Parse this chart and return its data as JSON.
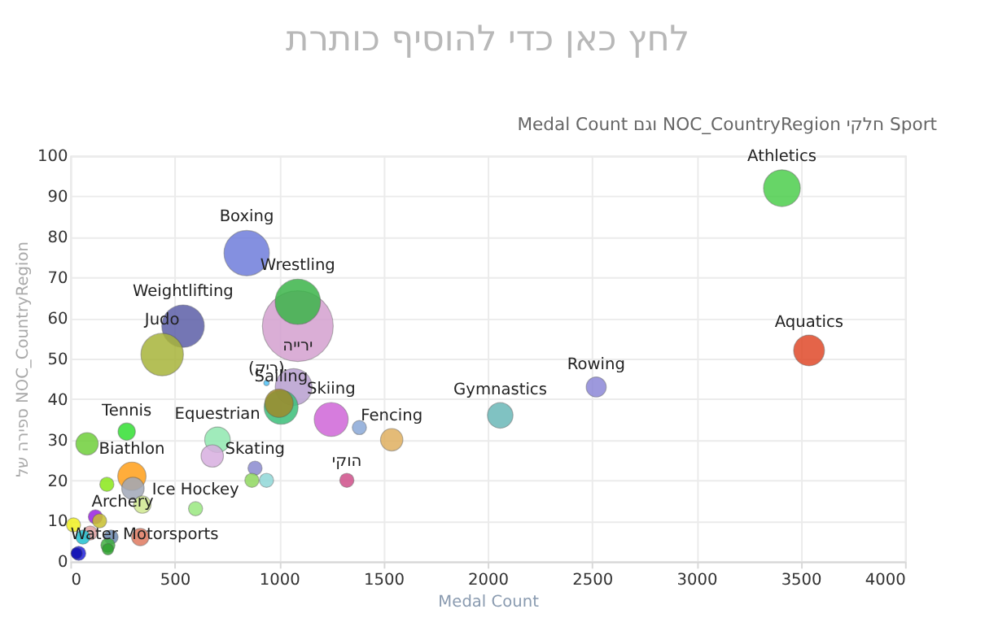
{
  "chart_data": {
    "type": "bubble",
    "title": "לחץ כאן כדי להוסיף כותרת",
    "subtitle": "Medal Count וגם NOC_CountryRegion חלקי Sport",
    "xlabel": "Medal Count",
    "ylabel": "ספירה של NOC_CountryRegion",
    "xlim": [
      0,
      4000
    ],
    "xticks": [
      0,
      500,
      1000,
      1500,
      2000,
      2500,
      3000,
      3500,
      4000
    ],
    "ylim": [
      0,
      100
    ],
    "yticks": [
      0,
      10,
      20,
      30,
      40,
      50,
      60,
      70,
      80,
      90,
      100
    ],
    "grid": true,
    "series": [
      {
        "x": [
          1090,
          1090,
          845,
          540,
          440,
          940,
          1070,
          1250,
          1010,
          1000,
          1385,
          1540,
          1325,
          2060,
          2520,
          3540,
          3410,
          270,
          80,
          705,
          680,
          885,
          870,
          940,
          295,
          300,
          175,
          345,
          600,
          120,
          140,
          15,
          95,
          195,
          60,
          335,
          180,
          180,
          40,
          30
        ],
        "values": [
          58,
          64,
          76,
          58,
          51,
          44,
          43,
          35,
          38,
          39,
          33,
          30,
          20,
          36,
          43,
          52,
          92,
          32,
          29,
          30,
          26,
          23,
          20,
          20,
          21,
          18,
          19,
          14,
          13,
          11,
          10,
          9,
          7,
          6,
          6,
          6,
          4,
          3,
          2,
          2
        ],
        "sizes": [
          1,
          0.41,
          0.41,
          0.36,
          0.36,
          0.006,
          0.27,
          0.23,
          0.23,
          0.16,
          0.04,
          0.1,
          0.04,
          0.13,
          0.08,
          0.19,
          0.27,
          0.06,
          0.1,
          0.13,
          0.1,
          0.04,
          0.04,
          0.04,
          0.16,
          0.1,
          0.04,
          0.06,
          0.04,
          0.04,
          0.04,
          0.04,
          0.04,
          0.04,
          0.04,
          0.06,
          0.04,
          0.026,
          0.04,
          0.026
        ],
        "colors": [
          "#d4a0d0",
          "#3cb54a",
          "#6f7ddb",
          "#5c5fa8",
          "#a8b43a",
          "#4fc3f7",
          "#b89fd0",
          "#d066d8",
          "#3cbf7a",
          "#9e8a2b",
          "#8aa9d8",
          "#e0b060",
          "#d0508a",
          "#6bb8b8",
          "#8c88d8",
          "#e04a2a",
          "#4dce4d",
          "#33e033",
          "#6fcf3a",
          "#90e8b0",
          "#d8aee0",
          "#8a8ad0",
          "#90d860",
          "#90d8d8",
          "#ff9f1a",
          "#a0a8b8",
          "#8ae81a",
          "#d0e890",
          "#9ae880",
          "#9a20e0",
          "#c8c030",
          "#f0f020",
          "#e0a0a0",
          "#6a88b0",
          "#20c0d0",
          "#e07a60",
          "#40b040",
          "#30a030",
          "#2020e0",
          "#1010b0"
        ]
      }
    ],
    "annotations": [
      {
        "text": "Boxing",
        "x": 845,
        "y": 76
      },
      {
        "text": "Wrestling",
        "x": 1090,
        "y": 64
      },
      {
        "text": "Weightlifting",
        "x": 540,
        "y": 58
      },
      {
        "text": "Judo",
        "x": 440,
        "y": 51
      },
      {
        "text": "ירייה",
        "x": 1090,
        "y": 58
      },
      {
        "text": "(ריק)",
        "x": 940,
        "y": 44
      },
      {
        "text": "Skiing",
        "x": 1250,
        "y": 35
      },
      {
        "text": "Fencing",
        "x": 1540,
        "y": 30
      },
      {
        "text": "Sailing",
        "x": 1010,
        "y": 38
      },
      {
        "text": "Equestrian",
        "x": 705,
        "y": 30
      },
      {
        "text": "Skating",
        "x": 885,
        "y": 23
      },
      {
        "text": "הוקי",
        "x": 1325,
        "y": 20
      },
      {
        "text": "Tennis",
        "x": 270,
        "y": 32
      },
      {
        "text": "Biathlon",
        "x": 295,
        "y": 21
      },
      {
        "text": "Ice Hockey",
        "x": 600,
        "y": 13
      },
      {
        "text": "Archery",
        "x": 140,
        "y": 10
      },
      {
        "text": "Water Motorsports",
        "x": 40,
        "y": 2
      },
      {
        "text": "Athletics",
        "x": 3410,
        "y": 92
      },
      {
        "text": "Aquatics",
        "x": 3540,
        "y": 52
      },
      {
        "text": "Rowing",
        "x": 2520,
        "y": 43
      },
      {
        "text": "Gymnastics",
        "x": 2060,
        "y": 36
      }
    ]
  }
}
